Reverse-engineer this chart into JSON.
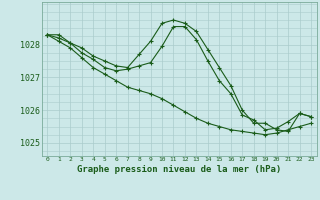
{
  "title": "Graphe pression niveau de la mer (hPa)",
  "bg_color": "#cce8e8",
  "grid_color": "#aacccc",
  "line_color": "#1a5c1a",
  "x_labels": [
    "0",
    "1",
    "2",
    "3",
    "4",
    "5",
    "6",
    "7",
    "8",
    "9",
    "10",
    "11",
    "12",
    "13",
    "14",
    "15",
    "16",
    "17",
    "18",
    "19",
    "20",
    "21",
    "22",
    "23"
  ],
  "ylim": [
    1024.6,
    1029.3
  ],
  "yticks": [
    1025,
    1026,
    1027,
    1028
  ],
  "series": [
    [
      1028.3,
      1028.3,
      1028.05,
      1027.9,
      1027.65,
      1027.5,
      1027.35,
      1027.3,
      1027.7,
      1028.1,
      1028.65,
      1028.75,
      1028.65,
      1028.4,
      1027.85,
      1027.3,
      1026.75,
      1026.0,
      1025.6,
      1025.6,
      1025.4,
      1025.35,
      1025.9,
      1025.8
    ],
    [
      1028.3,
      1028.2,
      1028.05,
      1027.75,
      1027.55,
      1027.3,
      1027.2,
      1027.25,
      1027.35,
      1027.45,
      1027.95,
      1028.55,
      1028.55,
      1028.15,
      1027.5,
      1026.9,
      1026.5,
      1025.85,
      1025.7,
      1025.4,
      1025.45,
      1025.65,
      1025.9,
      1025.8
    ],
    [
      1028.3,
      1028.1,
      1027.9,
      1027.6,
      1027.3,
      1027.1,
      1026.9,
      1026.7,
      1026.6,
      1026.5,
      1026.35,
      1026.15,
      1025.95,
      1025.75,
      1025.6,
      1025.5,
      1025.4,
      1025.35,
      1025.3,
      1025.25,
      1025.3,
      1025.4,
      1025.5,
      1025.6
    ]
  ]
}
